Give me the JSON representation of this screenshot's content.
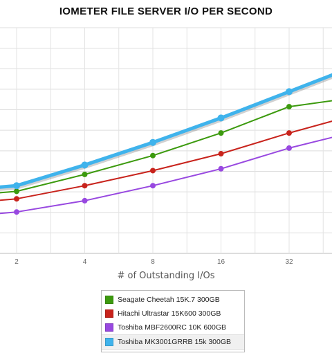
{
  "chart_data": {
    "type": "line",
    "title": "IOMETER FILE SERVER I/O PER SECOND",
    "xlabel": "# of Outstanding I/Os",
    "ylabel": "",
    "categories": [
      "2",
      "4",
      "8",
      "16",
      "32"
    ],
    "x_scale": "log2",
    "ylim": [
      0,
      12
    ],
    "grid": true,
    "legend_position": "bottom",
    "series": [
      {
        "name": "Seagate Cheetah 15K.7 300GB",
        "color": "#3c9a0e",
        "x": [
          1,
          2,
          4,
          8,
          16,
          32,
          64
        ],
        "values": [
          3.0,
          3.3,
          4.2,
          5.2,
          6.4,
          7.8,
          8.3
        ],
        "width": 2,
        "highlight": false
      },
      {
        "name": "Hitachi Ultrastar 15K600 300GB",
        "color": "#c8231c",
        "x": [
          1,
          2,
          4,
          8,
          16,
          32,
          64
        ],
        "values": [
          2.6,
          2.9,
          3.6,
          4.4,
          5.3,
          6.4,
          7.4
        ],
        "width": 2,
        "highlight": false
      },
      {
        "name": "Toshiba MBF2600RC 10K 600GB",
        "color": "#9848e0",
        "x": [
          1,
          2,
          4,
          8,
          16,
          32,
          64
        ],
        "values": [
          1.9,
          2.2,
          2.8,
          3.6,
          4.5,
          5.6,
          6.5
        ],
        "width": 2,
        "highlight": false
      },
      {
        "name": "Toshiba MK3001GRRB 15k 300GB",
        "color": "#3fb3ec",
        "x": [
          1,
          2,
          4,
          8,
          16,
          32,
          64
        ],
        "values": [
          3.3,
          3.6,
          4.7,
          5.9,
          7.2,
          8.6,
          10.0
        ],
        "width": 5,
        "highlight": true
      }
    ]
  }
}
